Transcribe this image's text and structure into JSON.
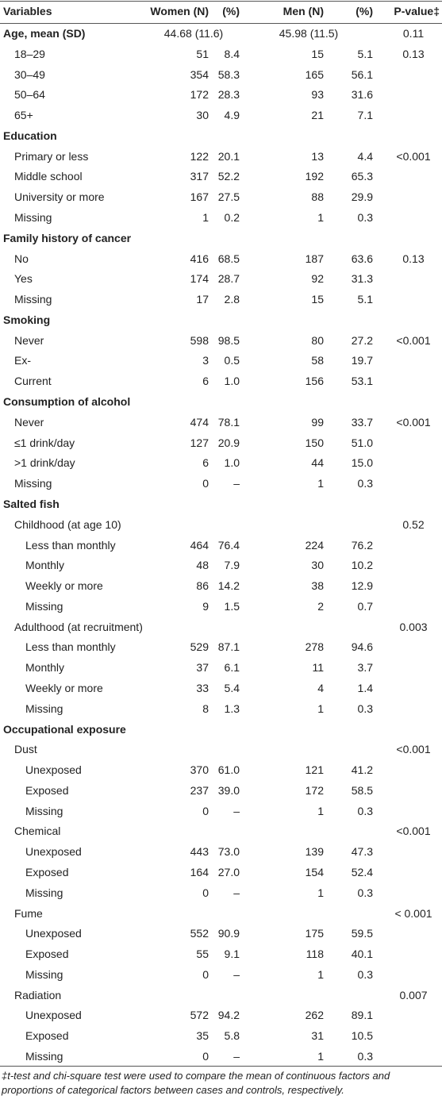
{
  "table": {
    "header": [
      "Variables",
      "Women (N)",
      "(%)",
      "Men (N)",
      "(%)",
      "P-value‡"
    ],
    "rows": [
      {
        "label": "Age, mean (SD)",
        "level": 0,
        "cells": [
          "44.68 (11.6)",
          null,
          "45.98 (11.5)",
          null,
          "0.11"
        ]
      },
      {
        "label": "18–29",
        "level": 1,
        "cells": [
          "51",
          "8.4",
          "15",
          "5.1",
          "0.13"
        ]
      },
      {
        "label": "30–49",
        "level": 1,
        "cells": [
          "354",
          "58.3",
          "165",
          "56.1",
          null
        ]
      },
      {
        "label": "50–64",
        "level": 1,
        "cells": [
          "172",
          "28.3",
          "93",
          "31.6",
          null
        ]
      },
      {
        "label": "65+",
        "level": 1,
        "cells": [
          "30",
          "4.9",
          "21",
          "7.1",
          null
        ]
      },
      {
        "label": "Education",
        "level": 0,
        "cells": [
          null,
          null,
          null,
          null,
          null
        ]
      },
      {
        "label": "Primary or less",
        "level": 1,
        "cells": [
          "122",
          "20.1",
          "13",
          "4.4",
          "<0.001"
        ]
      },
      {
        "label": "Middle school",
        "level": 1,
        "cells": [
          "317",
          "52.2",
          "192",
          "65.3",
          null
        ]
      },
      {
        "label": "University or more",
        "level": 1,
        "cells": [
          "167",
          "27.5",
          "88",
          "29.9",
          null
        ]
      },
      {
        "label": "Missing",
        "level": 1,
        "cells": [
          "1",
          "0.2",
          "1",
          "0.3",
          null
        ]
      },
      {
        "label": "Family history of cancer",
        "level": 0,
        "cells": [
          null,
          null,
          null,
          null,
          null
        ]
      },
      {
        "label": "No",
        "level": 1,
        "cells": [
          "416",
          "68.5",
          "187",
          "63.6",
          "0.13"
        ]
      },
      {
        "label": "Yes",
        "level": 1,
        "cells": [
          "174",
          "28.7",
          "92",
          "31.3",
          null
        ]
      },
      {
        "label": "Missing",
        "level": 1,
        "cells": [
          "17",
          "2.8",
          "15",
          "5.1",
          null
        ]
      },
      {
        "label": "Smoking",
        "level": 0,
        "cells": [
          null,
          null,
          null,
          null,
          null
        ]
      },
      {
        "label": "Never",
        "level": 1,
        "cells": [
          "598",
          "98.5",
          "80",
          "27.2",
          "<0.001"
        ]
      },
      {
        "label": "Ex-",
        "level": 1,
        "cells": [
          "3",
          "0.5",
          "58",
          "19.7",
          null
        ]
      },
      {
        "label": "Current",
        "level": 1,
        "cells": [
          "6",
          "1.0",
          "156",
          "53.1",
          null
        ]
      },
      {
        "label": "Consumption of alcohol",
        "level": 0,
        "cells": [
          null,
          null,
          null,
          null,
          null
        ]
      },
      {
        "label": "Never",
        "level": 1,
        "cells": [
          "474",
          "78.1",
          "99",
          "33.7",
          "<0.001"
        ]
      },
      {
        "label": "≤1 drink/day",
        "level": 1,
        "cells": [
          "127",
          "20.9",
          "150",
          "51.0",
          null
        ]
      },
      {
        "label": ">1 drink/day",
        "level": 1,
        "cells": [
          "6",
          "1.0",
          "44",
          "15.0",
          null
        ]
      },
      {
        "label": "Missing",
        "level": 1,
        "cells": [
          "0",
          "–",
          "1",
          "0.3",
          null
        ]
      },
      {
        "label": "Salted fish",
        "level": 0,
        "cells": [
          null,
          null,
          null,
          null,
          null
        ]
      },
      {
        "label": "Childhood (at age 10)",
        "level": 1,
        "cells": [
          null,
          null,
          null,
          null,
          "0.52"
        ]
      },
      {
        "label": "Less than monthly",
        "level": 2,
        "cells": [
          "464",
          "76.4",
          "224",
          "76.2",
          null
        ]
      },
      {
        "label": "Monthly",
        "level": 2,
        "cells": [
          "48",
          "7.9",
          "30",
          "10.2",
          null
        ]
      },
      {
        "label": "Weekly or more",
        "level": 2,
        "cells": [
          "86",
          "14.2",
          "38",
          "12.9",
          null
        ]
      },
      {
        "label": "Missing",
        "level": 2,
        "cells": [
          "9",
          "1.5",
          "2",
          "0.7",
          null
        ]
      },
      {
        "label": "Adulthood (at recruitment)",
        "level": 1,
        "cells": [
          null,
          null,
          null,
          null,
          "0.003"
        ]
      },
      {
        "label": "Less than monthly",
        "level": 2,
        "cells": [
          "529",
          "87.1",
          "278",
          "94.6",
          null
        ]
      },
      {
        "label": "Monthly",
        "level": 2,
        "cells": [
          "37",
          "6.1",
          "11",
          "3.7",
          null
        ]
      },
      {
        "label": "Weekly or more",
        "level": 2,
        "cells": [
          "33",
          "5.4",
          "4",
          "1.4",
          null
        ]
      },
      {
        "label": "Missing",
        "level": 2,
        "cells": [
          "8",
          "1.3",
          "1",
          "0.3",
          null
        ]
      },
      {
        "label": "Occupational exposure",
        "level": 0,
        "cells": [
          null,
          null,
          null,
          null,
          null
        ]
      },
      {
        "label": "Dust",
        "level": 1,
        "cells": [
          null,
          null,
          null,
          null,
          "<0.001"
        ]
      },
      {
        "label": "Unexposed",
        "level": 2,
        "cells": [
          "370",
          "61.0",
          "121",
          "41.2",
          null
        ]
      },
      {
        "label": "Exposed",
        "level": 2,
        "cells": [
          "237",
          "39.0",
          "172",
          "58.5",
          null
        ]
      },
      {
        "label": "Missing",
        "level": 2,
        "cells": [
          "0",
          "–",
          "1",
          "0.3",
          null
        ]
      },
      {
        "label": "Chemical",
        "level": 1,
        "cells": [
          null,
          null,
          null,
          null,
          "<0.001"
        ]
      },
      {
        "label": "Unexposed",
        "level": 2,
        "cells": [
          "443",
          "73.0",
          "139",
          "47.3",
          null
        ]
      },
      {
        "label": "Exposed",
        "level": 2,
        "cells": [
          "164",
          "27.0",
          "154",
          "52.4",
          null
        ]
      },
      {
        "label": "Missing",
        "level": 2,
        "cells": [
          "0",
          "–",
          "1",
          "0.3",
          null
        ]
      },
      {
        "label": "Fume",
        "level": 1,
        "cells": [
          null,
          null,
          null,
          null,
          "< 0.001"
        ]
      },
      {
        "label": "Unexposed",
        "level": 2,
        "cells": [
          "552",
          "90.9",
          "175",
          "59.5",
          null
        ]
      },
      {
        "label": "Exposed",
        "level": 2,
        "cells": [
          "55",
          "9.1",
          "118",
          "40.1",
          null
        ]
      },
      {
        "label": "Missing",
        "level": 2,
        "cells": [
          "0",
          "–",
          "1",
          "0.3",
          null
        ]
      },
      {
        "label": "Radiation",
        "level": 1,
        "cells": [
          null,
          null,
          null,
          null,
          "0.007"
        ]
      },
      {
        "label": "Unexposed",
        "level": 2,
        "cells": [
          "572",
          "94.2",
          "262",
          "89.1",
          null
        ]
      },
      {
        "label": "Exposed",
        "level": 2,
        "cells": [
          "35",
          "5.8",
          "31",
          "10.5",
          null
        ]
      },
      {
        "label": "Missing",
        "level": 2,
        "cells": [
          "0",
          "–",
          "1",
          "0.3",
          null
        ]
      }
    ]
  },
  "footnote": "‡t-test and chi-square test were used to compare the mean of continuous factors and proportions of categorical factors between cases and controls, respectively."
}
